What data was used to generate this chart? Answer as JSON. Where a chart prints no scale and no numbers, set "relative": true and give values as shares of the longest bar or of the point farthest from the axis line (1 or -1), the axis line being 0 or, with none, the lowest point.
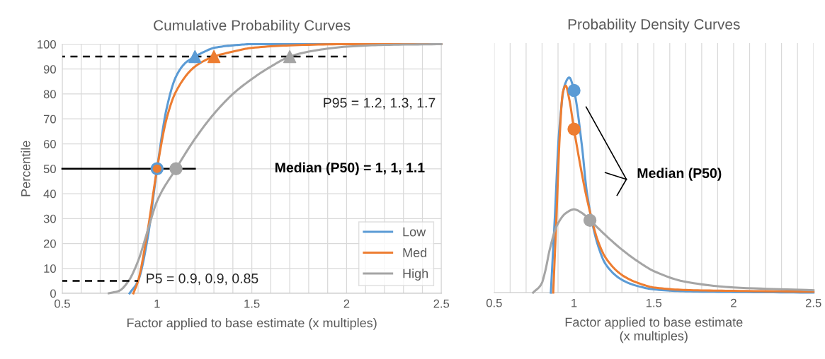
{
  "chart_data": [
    {
      "type": "line",
      "title": "Cumulative Probability Curves",
      "xlabel": "Factor applied to base estimate (x multiples)",
      "ylabel": "Percentile",
      "xlim": [
        0.5,
        2.5
      ],
      "xticks": [
        0.5,
        1,
        1.5,
        2,
        2.5
      ],
      "ylim": [
        0,
        100
      ],
      "yticks": [
        0,
        10,
        20,
        30,
        40,
        50,
        60,
        70,
        80,
        90,
        100
      ],
      "grid": true,
      "legend": "bottom right",
      "series": [
        {
          "name": "Low",
          "color": "#5b9bd5",
          "x": [
            0.855,
            0.9,
            0.95,
            1.0,
            1.05,
            1.1,
            1.15,
            1.2,
            1.25,
            1.3,
            1.4,
            1.5,
            2.5
          ],
          "values": [
            0,
            5,
            22,
            50,
            74,
            87,
            92.5,
            95,
            97,
            98.5,
            99.5,
            100,
            100
          ]
        },
        {
          "name": "Med",
          "color": "#ed7d31",
          "x": [
            0.875,
            0.9,
            0.95,
            1.0,
            1.05,
            1.1,
            1.2,
            1.3,
            1.4,
            1.5,
            1.7,
            2.0,
            2.5
          ],
          "values": [
            0,
            5,
            25,
            50,
            70,
            81,
            91,
            95,
            97,
            98.5,
            99.5,
            100,
            100
          ]
        },
        {
          "name": "High",
          "color": "#a5a5a5",
          "x": [
            0.745,
            0.8,
            0.85,
            0.9,
            0.95,
            1.0,
            1.1,
            1.2,
            1.3,
            1.4,
            1.5,
            1.6,
            1.7,
            1.8,
            2.0,
            2.2,
            2.5
          ],
          "values": [
            0,
            1,
            5,
            13,
            25,
            37,
            50,
            62,
            72,
            80,
            86,
            91,
            95,
            97,
            99,
            99.7,
            100
          ]
        },
        {
          "type": "line",
          "color": "#000000",
          "line_style": "dashed",
          "x": [
            0.5,
            2.0
          ],
          "values": [
            95,
            95
          ]
        },
        {
          "type": "line",
          "color": "#000000",
          "line_style": "solid",
          "x": [
            0.5,
            1.2
          ],
          "values": [
            50,
            50
          ]
        },
        {
          "type": "line",
          "color": "#000000",
          "line_style": "dashed",
          "x": [
            0.5,
            0.9
          ],
          "values": [
            5,
            5
          ]
        },
        {
          "type": "scatter",
          "marker": "circle",
          "color": "#5b9bd5",
          "x": [
            1
          ],
          "values": [
            50
          ]
        },
        {
          "type": "scatter",
          "marker": "circle",
          "color": "#ed7d31",
          "x": [
            1
          ],
          "values": [
            50
          ]
        },
        {
          "type": "scatter",
          "marker": "circle",
          "color": "#a5a5a5",
          "x": [
            1.1
          ],
          "values": [
            50
          ]
        },
        {
          "type": "scatter",
          "marker": "triangle",
          "color": "#5b9bd5",
          "x": [
            1.2
          ],
          "values": [
            95
          ]
        },
        {
          "type": "scatter",
          "marker": "triangle",
          "color": "#ed7d31",
          "x": [
            1.3
          ],
          "values": [
            95
          ]
        },
        {
          "type": "scatter",
          "marker": "triangle",
          "color": "#a5a5a5",
          "x": [
            1.7
          ],
          "values": [
            95
          ]
        }
      ],
      "annotations": [
        "P95 = 1.2, 1.3, 1.7",
        "Median (P50) = 1, 1, 1.1",
        "P5 = 0.9, 0.9, 0.85"
      ]
    },
    {
      "type": "line",
      "title": "Probability Density Curves",
      "xlabel": "Factor applied to base estimate\n(x multiples)",
      "xlim": [
        0.5,
        2.5
      ],
      "xticks": [
        0.5,
        1,
        1.5,
        2,
        2.5
      ],
      "relative": true,
      "grid": "x",
      "series": [
        {
          "color": "#5b9bd5",
          "x": [
            0.855,
            0.88,
            0.907,
            0.94,
            0.97,
            1.0,
            1.05,
            1.08,
            1.15,
            1.2,
            1.306,
            1.4,
            1.5,
            1.7,
            2.0,
            2.5
          ],
          "values": [
            0,
            0.35,
            0.75,
            0.96,
            1,
            0.94,
            0.68,
            0.47,
            0.22,
            0.13,
            0.057,
            0.03,
            0.015,
            0.006,
            0.003,
            0
          ]
        },
        {
          "color": "#ed7d31",
          "x": [
            0.87,
            0.89,
            0.91,
            0.93,
            0.948,
            0.97,
            1.0,
            1.05,
            1.08,
            1.15,
            1.2,
            1.306,
            1.4,
            1.5,
            1.7,
            2.0,
            2.5
          ],
          "values": [
            0,
            0.35,
            0.72,
            0.93,
            0.962,
            0.9,
            0.76,
            0.55,
            0.44,
            0.24,
            0.16,
            0.079,
            0.045,
            0.024,
            0.012,
            0.008,
            0.004
          ]
        },
        {
          "color": "#a5a5a5",
          "x": [
            0.744,
            0.796,
            0.82,
            0.848,
            0.892,
            0.95,
            1.0,
            1.05,
            1.1,
            1.2,
            1.3,
            1.41,
            1.5,
            1.7,
            2.0,
            2.5
          ],
          "values": [
            0,
            0.04,
            0.1,
            0.2,
            0.31,
            0.37,
            0.387,
            0.37,
            0.336,
            0.265,
            0.2,
            0.14,
            0.1,
            0.05,
            0.024,
            0.011
          ]
        },
        {
          "type": "scatter",
          "marker": "circle",
          "color": "#5b9bd5",
          "x": [
            1
          ],
          "values": [
            0.94
          ]
        },
        {
          "type": "scatter",
          "marker": "circle",
          "color": "#ed7d31",
          "x": [
            1
          ],
          "values": [
            0.76
          ]
        },
        {
          "type": "scatter",
          "marker": "circle",
          "color": "#a5a5a5",
          "x": [
            1.1
          ],
          "values": [
            0.336
          ]
        }
      ],
      "annotations": [
        "Median (P50)"
      ]
    }
  ]
}
